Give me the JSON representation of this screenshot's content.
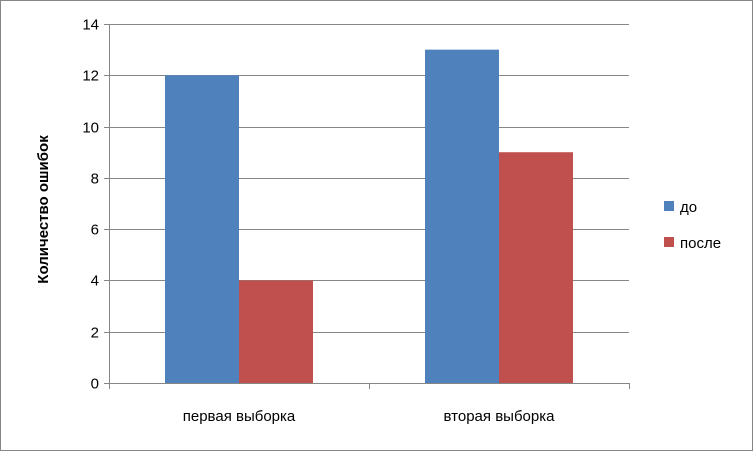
{
  "chart_data": {
    "type": "bar",
    "categories": [
      "первая выборка",
      "вторая выборка"
    ],
    "series": [
      {
        "name": "до",
        "values": [
          12,
          13
        ],
        "color": "#4F81BD"
      },
      {
        "name": "после",
        "values": [
          4,
          9
        ],
        "color": "#C0504D"
      }
    ],
    "xlabel": "",
    "ylabel": "Количество ошибок",
    "ylim": [
      0,
      14
    ],
    "yticks": [
      0,
      2,
      4,
      6,
      8,
      10,
      12,
      14
    ],
    "grid": true,
    "legend_position": "right"
  }
}
